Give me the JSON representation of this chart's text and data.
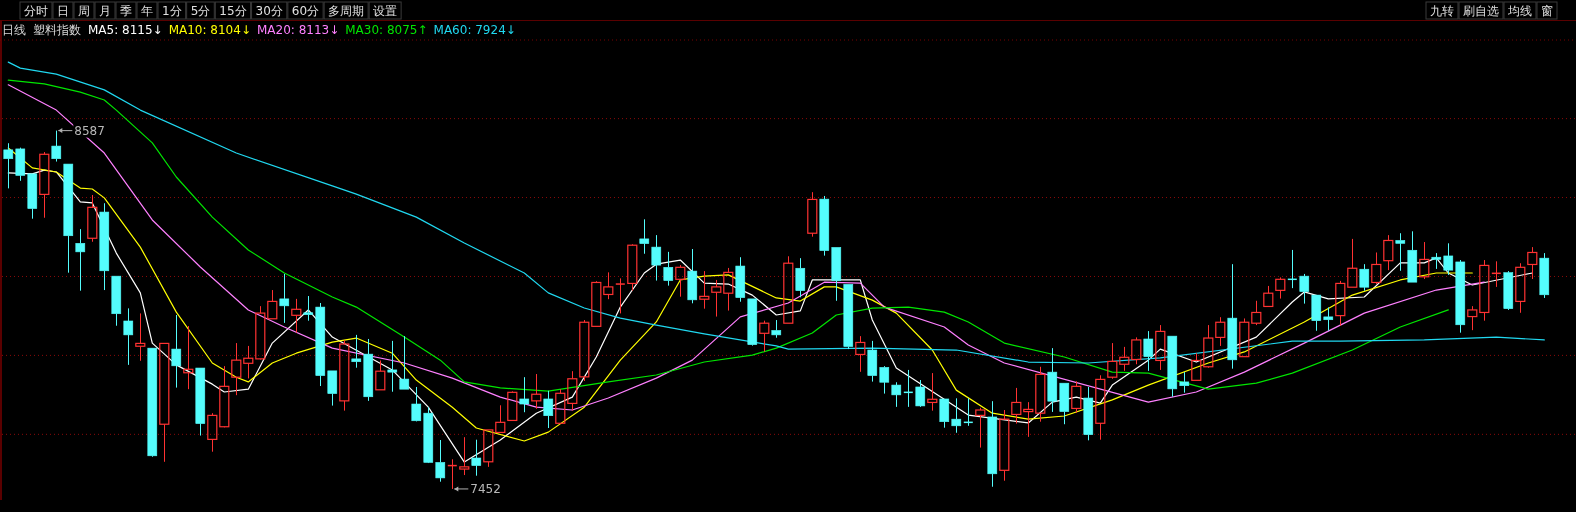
{
  "chart_data": {
    "type": "candlestick",
    "title": "日线",
    "subtitle": "塑料指数",
    "categories": [
      null,
      null,
      null,
      null,
      null,
      null,
      null,
      null,
      null,
      null,
      null,
      null,
      null,
      null,
      null,
      null,
      null,
      null,
      null,
      null,
      null,
      null,
      null,
      null,
      null,
      null,
      null,
      null,
      null,
      null,
      null,
      null,
      null,
      null,
      null,
      null,
      null,
      null,
      null,
      null,
      null,
      null,
      null,
      null,
      null,
      null,
      null,
      null,
      null,
      null,
      null,
      null,
      null,
      null,
      null,
      null,
      null,
      null,
      null,
      null,
      null,
      null,
      null,
      null,
      null,
      null,
      null,
      null,
      null,
      null,
      null,
      null,
      null,
      null,
      null,
      null,
      null,
      null,
      null,
      null,
      null,
      null,
      null,
      null,
      null,
      null,
      null,
      null,
      null,
      null,
      null,
      null,
      null,
      null,
      null,
      null,
      null,
      null,
      null,
      null,
      null,
      null,
      null,
      null,
      null,
      null,
      null,
      null,
      null,
      null,
      null,
      null,
      null,
      null,
      null,
      null,
      null,
      null,
      null,
      null,
      null,
      null,
      null,
      null,
      null,
      null,
      null,
      null,
      null
    ],
    "ohlc": [
      [
        8526,
        8547,
        8404,
        8498
      ],
      [
        8529,
        8533,
        8428,
        8445
      ],
      [
        8450,
        8450,
        8308,
        8340
      ],
      [
        8385,
        8519,
        8311,
        8512
      ],
      [
        8538,
        8587,
        8489,
        8498
      ],
      [
        8481,
        8481,
        8137,
        8254
      ],
      [
        8230,
        8275,
        8080,
        8203
      ],
      [
        8246,
        8383,
        8235,
        8344
      ],
      [
        8329,
        8357,
        8082,
        8143
      ],
      [
        8126,
        8126,
        7969,
        8007
      ],
      [
        7984,
        8024,
        7845,
        7940
      ],
      [
        7904,
        8008,
        7858,
        7913
      ],
      [
        7898,
        7898,
        7554,
        7557
      ],
      [
        7657,
        7913,
        7538,
        7913
      ],
      [
        7895,
        8003,
        7773,
        7842
      ],
      [
        7820,
        7968,
        7768,
        7831
      ],
      [
        7835,
        7835,
        7621,
        7659
      ],
      [
        7609,
        7692,
        7570,
        7685
      ],
      [
        7649,
        7841,
        7647,
        7777
      ],
      [
        7806,
        7914,
        7749,
        7860
      ],
      [
        7850,
        7905,
        7802,
        7866
      ],
      [
        7864,
        8031,
        7862,
        8009
      ],
      [
        7991,
        8082,
        7991,
        8046
      ],
      [
        8054,
        8133,
        7978,
        8032
      ],
      [
        8002,
        8054,
        7947,
        8021
      ],
      [
        8010,
        8063,
        7985,
        8004
      ],
      [
        8028,
        8041,
        7778,
        7811
      ],
      [
        7826,
        7826,
        7716,
        7754
      ],
      [
        7731,
        7923,
        7700,
        7911
      ],
      [
        7864,
        7940,
        7836,
        7855
      ],
      [
        7879,
        7927,
        7731,
        7744
      ],
      [
        7766,
        7859,
        7766,
        7825
      ],
      [
        7829,
        7921,
        7760,
        7822
      ],
      [
        7800,
        7936,
        7768,
        7768
      ],
      [
        7721,
        7775,
        7666,
        7668
      ],
      [
        7692,
        7711,
        7534,
        7536
      ],
      [
        7536,
        7607,
        7475,
        7487
      ],
      [
        7526,
        7546,
        7452,
        7526
      ],
      [
        7515,
        7616,
        7496,
        7522
      ],
      [
        7550,
        7608,
        7494,
        7526
      ],
      [
        7538,
        7639,
        7522,
        7639
      ],
      [
        7631,
        7717,
        7631,
        7663
      ],
      [
        7669,
        7761,
        7669,
        7758
      ],
      [
        7737,
        7806,
        7695,
        7721
      ],
      [
        7731,
        7816,
        7706,
        7752
      ],
      [
        7737,
        7763,
        7645,
        7684
      ],
      [
        7660,
        7768,
        7660,
        7755
      ],
      [
        7723,
        7825,
        7700,
        7801
      ],
      [
        7807,
        7987,
        7794,
        7980
      ],
      [
        7967,
        8110,
        7967,
        8106
      ],
      [
        8068,
        8138,
        8053,
        8092
      ],
      [
        8101,
        8119,
        8008,
        8101
      ],
      [
        8103,
        8227,
        8080,
        8224
      ],
      [
        8244,
        8306,
        8197,
        8229
      ],
      [
        8218,
        8256,
        8112,
        8161
      ],
      [
        8154,
        8203,
        8096,
        8112
      ],
      [
        8116,
        8161,
        8061,
        8154
      ],
      [
        8142,
        8212,
        8040,
        8051
      ],
      [
        8053,
        8142,
        8023,
        8062
      ],
      [
        8075,
        8114,
        7998,
        8092
      ],
      [
        8072,
        8152,
        8017,
        8138
      ],
      [
        8158,
        8186,
        8045,
        8058
      ],
      [
        8054,
        8054,
        7906,
        7909
      ],
      [
        7945,
        7985,
        7887,
        7977
      ],
      [
        7954,
        7987,
        7931,
        7940
      ],
      [
        7977,
        8189,
        7977,
        8167
      ],
      [
        8151,
        8183,
        8059,
        8080
      ],
      [
        8262,
        8392,
        8251,
        8369
      ],
      [
        8370,
        8380,
        8191,
        8207
      ],
      [
        8217,
        8217,
        8048,
        8112
      ],
      [
        8100,
        8100,
        7895,
        7903
      ],
      [
        7878,
        7936,
        7823,
        7916
      ],
      [
        7892,
        7921,
        7792,
        7811
      ],
      [
        7837,
        7841,
        7754,
        7790
      ],
      [
        7781,
        7790,
        7712,
        7750
      ],
      [
        7758,
        7829,
        7712,
        7758
      ],
      [
        7775,
        7797,
        7712,
        7715
      ],
      [
        7726,
        7819,
        7700,
        7736
      ],
      [
        7737,
        7737,
        7646,
        7665
      ],
      [
        7673,
        7739,
        7630,
        7652
      ],
      [
        7663,
        7739,
        7652,
        7663
      ],
      [
        7685,
        7709,
        7583,
        7702
      ],
      [
        7680,
        7730,
        7459,
        7500
      ],
      [
        7511,
        7702,
        7478,
        7673
      ],
      [
        7688,
        7772,
        7659,
        7726
      ],
      [
        7697,
        7727,
        7617,
        7704
      ],
      [
        7692,
        7839,
        7665,
        7815
      ],
      [
        7822,
        7898,
        7696,
        7730
      ],
      [
        7787,
        7787,
        7657,
        7697
      ],
      [
        7707,
        7793,
        7693,
        7777
      ],
      [
        7740,
        7775,
        7606,
        7624
      ],
      [
        7660,
        7812,
        7608,
        7799
      ],
      [
        7806,
        7914,
        7801,
        7856
      ],
      [
        7847,
        7902,
        7826,
        7869
      ],
      [
        7862,
        7932,
        7847,
        7924
      ],
      [
        7927,
        7952,
        7826,
        7871
      ],
      [
        7859,
        7971,
        7829,
        7951
      ],
      [
        7936,
        7936,
        7744,
        7769
      ],
      [
        7791,
        7822,
        7757,
        7779
      ],
      [
        7796,
        7882,
        7796,
        7859
      ],
      [
        7839,
        7971,
        7836,
        7930
      ],
      [
        7932,
        7996,
        7905,
        7980
      ],
      [
        7993,
        8164,
        7833,
        7861
      ],
      [
        7871,
        7992,
        7871,
        7980
      ],
      [
        7977,
        8048,
        7971,
        8011
      ],
      [
        8030,
        8095,
        8030,
        8072
      ],
      [
        8081,
        8122,
        8055,
        8116
      ],
      [
        8116,
        8209,
        8088,
        8116
      ],
      [
        8126,
        8133,
        8039,
        8077
      ],
      [
        8066,
        8066,
        7953,
        7985
      ],
      [
        7997,
        8027,
        7953,
        7988
      ],
      [
        8001,
        8111,
        7969,
        8103
      ],
      [
        8091,
        8244,
        8091,
        8151
      ],
      [
        8148,
        8164,
        8080,
        8091
      ],
      [
        8106,
        8201,
        8101,
        8163
      ],
      [
        8175,
        8256,
        8145,
        8239
      ],
      [
        8239,
        8262,
        8143,
        8230
      ],
      [
        8208,
        8268,
        8107,
        8107
      ],
      [
        8124,
        8234,
        8117,
        8179
      ],
      [
        8186,
        8199,
        8149,
        8179
      ],
      [
        8190,
        8230,
        8130,
        8145
      ],
      [
        8171,
        8177,
        7947,
        7972
      ],
      [
        7998,
        8031,
        7955,
        8019
      ],
      [
        8011,
        8177,
        7985,
        8160
      ],
      [
        8135,
        8173,
        8092,
        8135
      ],
      [
        8137,
        8142,
        8019,
        8023
      ],
      [
        8046,
        8167,
        8010,
        8154
      ],
      [
        8163,
        8218,
        8117,
        8201
      ],
      [
        8183,
        8199,
        8057,
        8067
      ]
    ],
    "colors": [
      "#54fcfc",
      "#54fcfc",
      "#54fcfc",
      "#ff3232",
      "#54fcfc",
      "#54fcfc",
      "#54fcfc",
      "#ff3232",
      "#54fcfc",
      "#54fcfc",
      "#54fcfc",
      "#ff3232",
      "#54fcfc",
      "#ff3232",
      "#54fcfc",
      "#ff3232",
      "#54fcfc",
      "#ff3232",
      "#ff3232",
      "#ff3232",
      "#ff3232",
      "#ff3232",
      "#ff3232",
      "#54fcfc",
      "#ff3232",
      "#54fcfc",
      "#54fcfc",
      "#54fcfc",
      "#ff3232",
      "#54fcfc",
      "#54fcfc",
      "#ff3232",
      "#54fcfc",
      "#54fcfc",
      "#54fcfc",
      "#54fcfc",
      "#54fcfc",
      "#ff3232",
      "#ff3232",
      "#54fcfc",
      "#ff3232",
      "#ff3232",
      "#ff3232",
      "#54fcfc",
      "#ff3232",
      "#54fcfc",
      "#ff3232",
      "#ff3232",
      "#ff3232",
      "#ff3232",
      "#ff3232",
      "#ff3232",
      "#ff3232",
      "#54fcfc",
      "#54fcfc",
      "#54fcfc",
      "#ff3232",
      "#54fcfc",
      "#ff3232",
      "#ff3232",
      "#ff3232",
      "#54fcfc",
      "#54fcfc",
      "#ff3232",
      "#54fcfc",
      "#ff3232",
      "#54fcfc",
      "#ff3232",
      "#54fcfc",
      "#54fcfc",
      "#54fcfc",
      "#ff3232",
      "#54fcfc",
      "#54fcfc",
      "#54fcfc",
      "#54fcfc",
      "#54fcfc",
      "#ff3232",
      "#54fcfc",
      "#54fcfc",
      "#54fcfc",
      "#ff3232",
      "#54fcfc",
      "#ff3232",
      "#ff3232",
      "#ff3232",
      "#ff3232",
      "#54fcfc",
      "#54fcfc",
      "#ff3232",
      "#54fcfc",
      "#ff3232",
      "#ff3232",
      "#ff3232",
      "#ff3232",
      "#54fcfc",
      "#ff3232",
      "#54fcfc",
      "#54fcfc",
      "#ff3232",
      "#ff3232",
      "#ff3232",
      "#54fcfc",
      "#ff3232",
      "#ff3232",
      "#ff3232",
      "#ff3232",
      "#54fcfc",
      "#54fcfc",
      "#54fcfc",
      "#54fcfc",
      "#ff3232",
      "#ff3232",
      "#54fcfc",
      "#ff3232",
      "#ff3232",
      "#54fcfc",
      "#54fcfc",
      "#ff3232",
      "#54fcfc",
      "#54fcfc",
      "#54fcfc",
      "#ff3232",
      "#ff3232",
      "#ff3232",
      "#54fcfc",
      "#ff3232",
      "#ff3232",
      "#54fcfc"
    ],
    "series": [
      {
        "name": "MA5: 8115↓",
        "type": "line",
        "color": "#ffffff",
        "values": [
          8453,
          null,
          8450,
          8462,
          8456,
          null,
          8361,
          8358,
          null,
          8199,
          null,
          8073,
          7914,
          null,
          7845,
          null,
          null,
          7784,
          7759,
          null,
          7768,
          null,
          7914,
          null,
          null,
          8019,
          null,
          7933,
          null,
          null,
          null,
          null,
          7829,
          null,
          null,
          7711,
          null,
          null,
          7537,
          null,
          null,
          7607,
          null,
          null,
          7692,
          null,
          null,
          7743,
          null,
          7870,
          null,
          8028,
          null,
          8136,
          8164,
          null,
          8177,
          null,
          8104,
          null,
          8101,
          null,
          8066,
          null,
          8003,
          null,
          8016,
          8114,
          null,
          null,
          null,
          8114,
          7987,
          null,
          7835,
          null,
          null,
          null,
          null,
          null,
          7686,
          null,
          null,
          null,
          null,
          7661,
          null,
          7727,
          null,
          7743,
          null,
          7724,
          7781,
          null,
          null,
          7860,
          7895,
          null,
          null,
          7854,
          null,
          null,
          null,
          null,
          7933,
          null,
          null,
          8044,
          8076,
          null,
          8054,
          null,
          null,
          8060,
          null,
          null,
          8168,
          null,
          8168,
          8184,
          8136,
          null,
          8098,
          null,
          null,
          null,
          null,
          8136,
          null
        ]
      },
      {
        "name": "MA10: 8104↓",
        "type": "line",
        "color": "#ffff00",
        "values": [
          8532,
          null,
          8469,
          null,
          8456,
          null,
          8405,
          8402,
          8374,
          null,
          null,
          8218,
          null,
          null,
          8012,
          null,
          null,
          7851,
          null,
          7806,
          7791,
          null,
          7851,
          null,
          7882,
          null,
          null,
          7917,
          null,
          7930,
          null,
          null,
          7882,
          null,
          7797,
          null,
          null,
          7711,
          null,
          7645,
          null,
          null,
          null,
          7604,
          null,
          7632,
          null,
          null,
          7711,
          null,
          null,
          7860,
          null,
          null,
          7981,
          null,
          8114,
          null,
          8126,
          null,
          8130,
          null,
          null,
          null,
          8057,
          null,
          8047,
          null,
          8092,
          8092,
          null,
          null,
          8050,
          null,
          8009,
          null,
          null,
          7892,
          null,
          7765,
          null,
          null,
          7692,
          null,
          null,
          7673,
          null,
          null,
          7683,
          null,
          null,
          null,
          7734,
          null,
          null,
          7781,
          null,
          null,
          null,
          null,
          7851,
          null,
          null,
          7886,
          null,
          null,
          null,
          7962,
          7981,
          null,
          null,
          null,
          8066,
          null,
          null,
          null,
          8114,
          null,
          null,
          8136,
          null,
          null,
          8136,
          null,
          null,
          null,
          null,
          null,
          null
        ]
      },
      {
        "name": "MA20: 8113↓",
        "type": "line",
        "color": "#ff80ff",
        "values": [
          8732,
          null,
          null,
          null,
          8652,
          null,
          null,
          null,
          8516,
          null,
          null,
          null,
          8304,
          null,
          null,
          null,
          8155,
          null,
          null,
          null,
          8019,
          null,
          null,
          7965,
          null,
          null,
          null,
          7898,
          null,
          null,
          null,
          null,
          null,
          7851,
          null,
          null,
          null,
          7803,
          null,
          null,
          null,
          7743,
          null,
          null,
          7711,
          null,
          null,
          7702,
          null,
          null,
          7740,
          null,
          null,
          null,
          7803,
          null,
          null,
          7860,
          null,
          null,
          null,
          7997,
          null,
          null,
          null,
          8041,
          null,
          null,
          8107,
          null,
          null,
          8104,
          null,
          8028,
          null,
          null,
          null,
          null,
          7965,
          null,
          7908,
          null,
          null,
          7851,
          null,
          null,
          null,
          null,
          null,
          null,
          null,
          null,
          null,
          null,
          null,
          7727,
          null,
          null,
          null,
          7759,
          null,
          null,
          null,
          7822,
          null,
          null,
          null,
          null,
          7914,
          null,
          null,
          null,
          null,
          8009,
          null,
          null,
          null,
          null,
          null,
          8082,
          null,
          null,
          null,
          8107,
          null,
          null,
          null,
          null,
          null
        ]
      },
      {
        "name": "MA30: 8075↑",
        "type": "line",
        "color": "#00e600",
        "values": [
          8747,
          null,
          null,
          8735,
          null,
          null,
          8709,
          null,
          8684,
          8652,
          null,
          null,
          8548,
          null,
          8440,
          null,
          null,
          8313,
          null,
          null,
          8209,
          null,
          null,
          8136,
          null,
          null,
          null,
          8060,
          null,
          8028,
          null,
          null,
          null,
          7933,
          null,
          null,
          7860,
          null,
          7791,
          null,
          null,
          7772,
          null,
          null,
          null,
          7762,
          null,
          null,
          null,
          null,
          7791,
          null,
          null,
          null,
          7813,
          null,
          null,
          null,
          7854,
          null,
          null,
          null,
          7876,
          null,
          7898,
          null,
          null,
          7946,
          null,
          8003,
          null,
          null,
          8025,
          null,
          null,
          8028,
          null,
          null,
          8012,
          null,
          7981,
          null,
          null,
          7914,
          null,
          null,
          null,
          null,
          7870,
          null,
          null,
          null,
          7822,
          null,
          null,
          7819,
          null,
          null,
          null,
          null,
          7768,
          null,
          null,
          null,
          7787,
          null,
          null,
          7819,
          null,
          null,
          null,
          null,
          7892,
          null,
          null,
          null,
          7965,
          null,
          null,
          null,
          8019,
          null,
          null,
          null,
          null,
          null,
          null,
          null,
          null
        ]
      },
      {
        "name": "MA60: 7924↓",
        "type": "line",
        "color": "#20d8f0",
        "values": [
          8804,
          8785,
          null,
          null,
          8766,
          null,
          null,
          null,
          8716,
          null,
          null,
          8652,
          null,
          null,
          null,
          null,
          null,
          null,
          null,
          8516,
          null,
          null,
          null,
          null,
          null,
          null,
          null,
          8412,
          null,
          8386,
          null,
          null,
          null,
          null,
          8313,
          null,
          null,
          null,
          8231,
          null,
          null,
          null,
          null,
          8136,
          null,
          8073,
          null,
          null,
          8025,
          null,
          null,
          7993,
          null,
          null,
          7971,
          null,
          null,
          null,
          7943,
          null,
          null,
          null,
          null,
          null,
          7905,
          7895,
          null,
          null,
          null,
          null,
          null,
          null,
          7898,
          null,
          null,
          null,
          null,
          null,
          null,
          7892,
          null,
          null,
          null,
          null,
          null,
          7854,
          null,
          null,
          null,
          null,
          7851,
          null,
          null,
          null,
          null,
          null,
          7867,
          null,
          null,
          null,
          null,
          null,
          null,
          null,
          null,
          null,
          null,
          7920,
          null,
          null,
          null,
          7920,
          null,
          null,
          null,
          null,
          null,
          null,
          7924,
          null,
          null,
          null,
          null,
          null,
          7933,
          null,
          null,
          null,
          7924
        ]
      }
    ],
    "ylim": [
      7417,
      8874
    ],
    "yticks": [
      {
        "value": 7625,
        "label": null
      },
      {
        "value": 7875,
        "label": null
      },
      {
        "value": 8125,
        "label": null
      },
      {
        "value": 8375,
        "label": null
      },
      {
        "value": 8625,
        "label": null
      }
    ],
    "grid": "y",
    "legend": "top left",
    "annotations": [
      "分时",
      "日",
      "周",
      "月",
      "季",
      "年",
      "1分",
      "5分",
      "15分",
      "30分",
      "60分",
      "多周期",
      "设置",
      "九转",
      "刷自选",
      "均线",
      "窗",
      "8587",
      "7452"
    ]
  }
}
